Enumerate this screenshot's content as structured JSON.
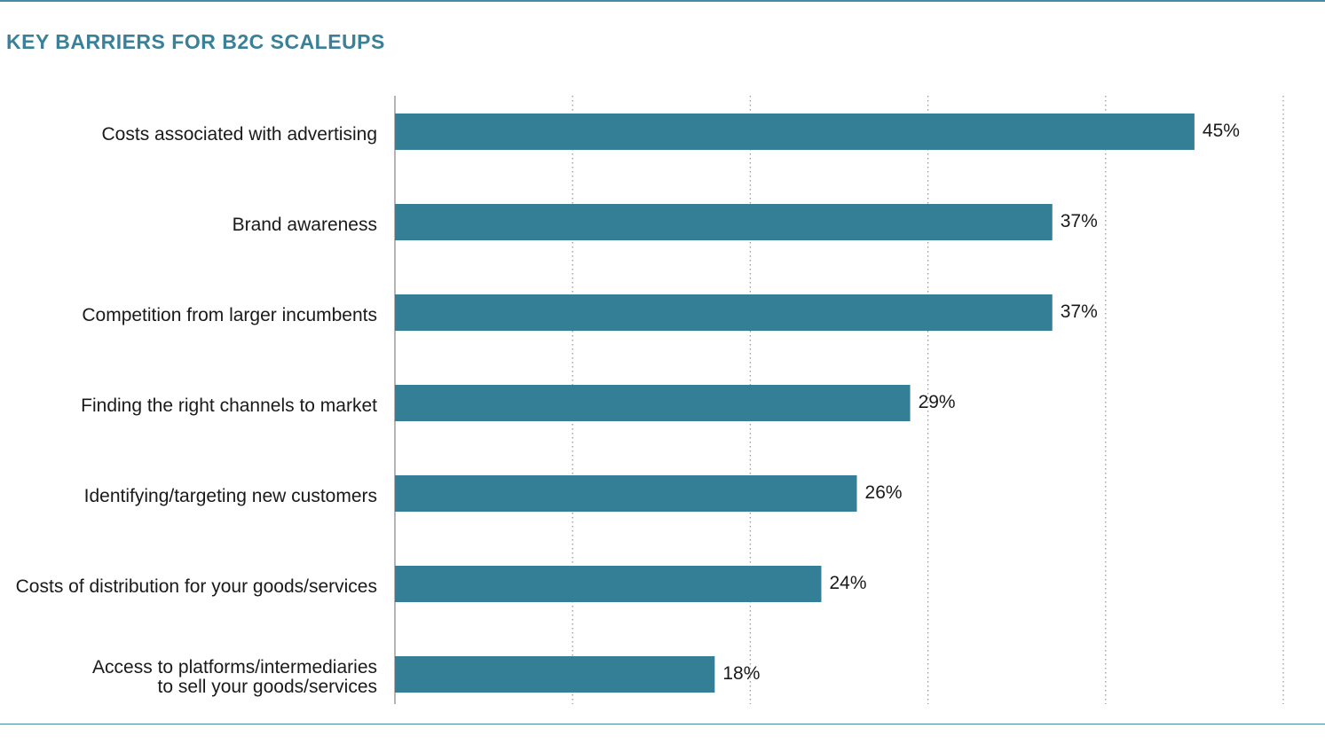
{
  "chart_data": {
    "type": "bar",
    "orientation": "horizontal",
    "title": "KEY BARRIERS FOR B2C SCALEUPS",
    "xlabel": "",
    "ylabel": "",
    "xlim": [
      0,
      50
    ],
    "grid": "vertical-dotted",
    "categories": [
      [
        "Costs associated with advertising"
      ],
      [
        "Brand awareness"
      ],
      [
        "Competition from larger incumbents"
      ],
      [
        "Finding the right channels to market"
      ],
      [
        "Identifying/targeting new customers"
      ],
      [
        "Costs of distribution for your goods/services"
      ],
      [
        "Access to platforms/intermediaries",
        "to sell your goods/services"
      ]
    ],
    "values": [
      45,
      37,
      37,
      29,
      26,
      24,
      18
    ],
    "value_labels": [
      "45%",
      "37%",
      "37%",
      "29%",
      "26%",
      "24%",
      "18%"
    ],
    "bar_color": "#357f96"
  }
}
